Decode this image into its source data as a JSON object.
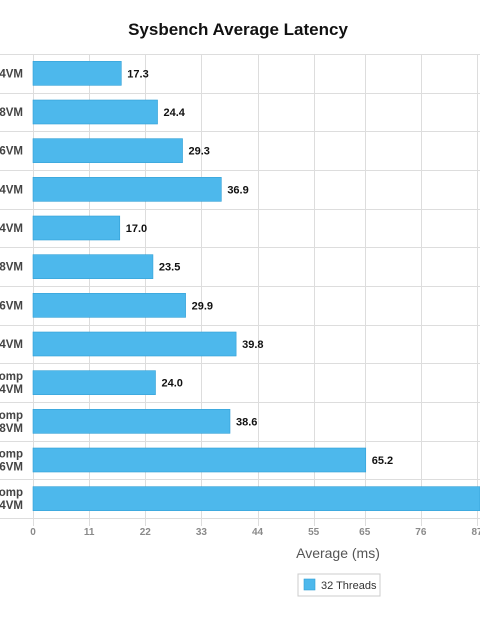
{
  "chart_data": {
    "type": "bar",
    "orientation": "horizontal",
    "title": "Sysbench Average Latency",
    "xlabel": "Average (ms)",
    "ylabel": "",
    "categories": [
      [
        "4VM"
      ],
      [
        "8VM"
      ],
      [
        "6VM"
      ],
      [
        "4VM"
      ],
      [
        "4VM"
      ],
      [
        "8VM"
      ],
      [
        "6VM"
      ],
      [
        "4VM"
      ],
      [
        "omp",
        "4VM"
      ],
      [
        "omp",
        "8VM"
      ],
      [
        "omp",
        "6VM"
      ],
      [
        "omp",
        "4VM"
      ]
    ],
    "series": [
      {
        "name": "32 Threads",
        "color": "#4db8ec",
        "values": [
          17.3,
          24.4,
          29.3,
          36.9,
          17.0,
          23.5,
          29.9,
          39.8,
          24.0,
          38.6,
          65.2,
          88.0
        ]
      }
    ],
    "value_labels": [
      "17.3",
      "24.4",
      "29.3",
      "36.9",
      "17.0",
      "23.5",
      "29.9",
      "39.8",
      "24.0",
      "38.6",
      "65.2",
      ""
    ],
    "xlim": [
      0,
      87
    ],
    "xticks": [
      0,
      11,
      22,
      33,
      44,
      55,
      65,
      76,
      87
    ],
    "grid": true,
    "legend_position": "bottom-center"
  }
}
